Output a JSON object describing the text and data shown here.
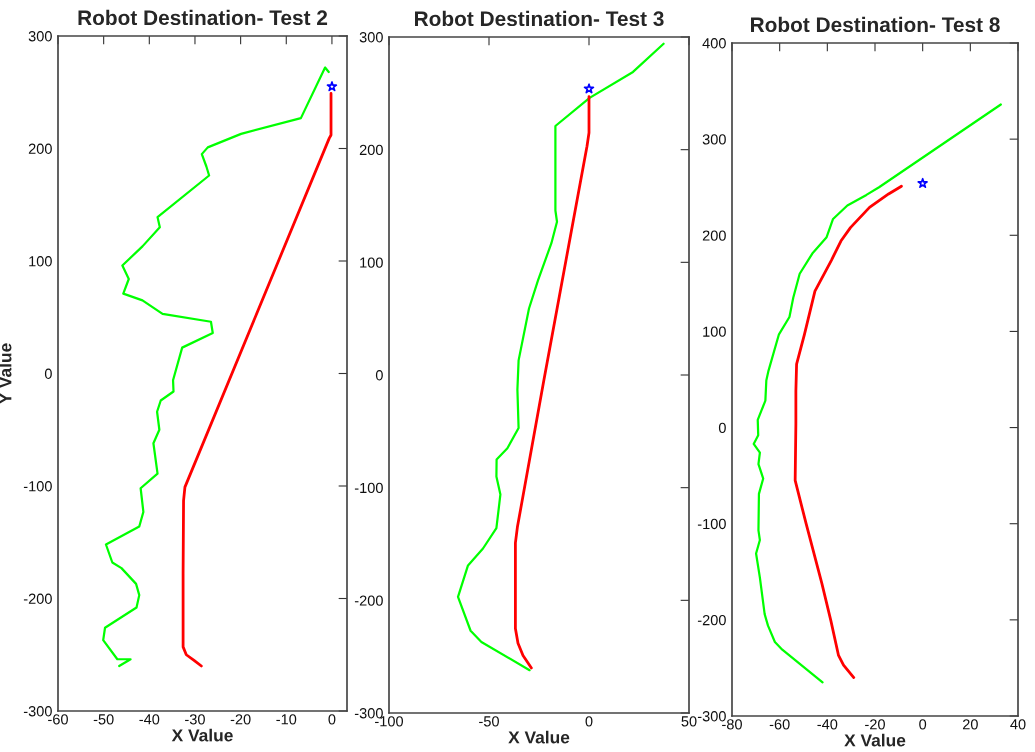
{
  "chart_data": [
    {
      "type": "line",
      "title": "Robot Destination- Test 2",
      "xlabel": "X Value",
      "ylabel": "Y Value",
      "xlim": [
        -60,
        3.3
      ],
      "ylim": [
        -300,
        300
      ],
      "xticks": [
        -60,
        -50,
        -40,
        -30,
        -20,
        -10,
        0
      ],
      "yticks": [
        -300,
        -200,
        -100,
        0,
        100,
        200,
        300
      ],
      "marker": "none",
      "line_style": "solid",
      "series": [
        {
          "color": "#00ff00",
          "x": [
            -0.7,
            -1.5,
            -6.8,
            -19.9,
            -27.2,
            -28.5,
            -27.5,
            -26.9,
            -38.2,
            -37.7,
            -41.5,
            -45.9,
            -44.5,
            -45.7,
            -41.5,
            -37.1,
            -26.5,
            -26.1,
            -32.8,
            -34.8,
            -34.7,
            -37.5,
            -38.3,
            -37.8,
            -39.1,
            -38.2,
            -41.9,
            -41.3,
            -42.2,
            -49.5,
            -48.1,
            -46.1,
            -42.9,
            -42.2,
            -42.8,
            -49.7,
            -50.1,
            -47,
            -44.1,
            -46.6
          ],
          "values": [
            268,
            272,
            227,
            213,
            201,
            195,
            184,
            176,
            139,
            130,
            113,
            96,
            84,
            71,
            65,
            53,
            46,
            36,
            23,
            -6,
            -16,
            -24,
            -34,
            -50,
            -62,
            -89,
            -102,
            -123,
            -136,
            -152,
            -168,
            -173,
            -187,
            -197,
            -208,
            -226,
            -237,
            -254,
            -254,
            -260
          ]
        },
        {
          "color": "#ff0000",
          "x": [
            -0.2,
            -0.2,
            -0.6,
            -32.2,
            -32.5,
            -32.6,
            -32.6,
            -31.9,
            -30.2,
            -28.6
          ],
          "values": [
            249,
            212,
            209,
            -101,
            -113,
            -178,
            -243,
            -250,
            -255,
            -260
          ]
        },
        {
          "type": "scatter",
          "color": "#0000ff",
          "marker": "star",
          "x": [
            0
          ],
          "values": [
            255
          ]
        }
      ]
    },
    {
      "type": "line",
      "title": "Robot Destination- Test 3",
      "xlabel": "X Value",
      "xlim": [
        -100,
        50
      ],
      "ylim": [
        -300,
        300
      ],
      "xticks": [
        -100,
        -50,
        0,
        50
      ],
      "yticks": [
        -300,
        -200,
        -100,
        0,
        100,
        200,
        300
      ],
      "marker": "none",
      "line_style": "solid",
      "series": [
        {
          "color": "#00ff00",
          "x": [
            37.3,
            22,
            0.3,
            -16.8,
            -16.8,
            -16,
            -18.8,
            -25.5,
            -30,
            -35.2,
            -35.8,
            -35.2,
            -40.8,
            -46.2,
            -46.3,
            -44.3,
            -46.3,
            -53,
            -60.5,
            -65.5,
            -59.2,
            -53.8,
            -29.7
          ],
          "values": [
            294,
            269,
            246,
            221,
            146,
            136,
            117,
            84,
            59,
            13,
            -13,
            -47,
            -65,
            -75,
            -90,
            -106,
            -136,
            -154,
            -169,
            -197,
            -227,
            -237,
            -262
          ]
        },
        {
          "color": "#ff0000",
          "x": [
            0,
            0,
            -1,
            -22.5,
            -35.8,
            -36.8,
            -36.8,
            -35.5,
            -33,
            -28.8
          ],
          "values": [
            247,
            215,
            203,
            -4,
            -135,
            -149,
            -225,
            -238,
            -249,
            -260
          ]
        },
        {
          "type": "scatter",
          "color": "#0000ff",
          "marker": "star",
          "x": [
            0
          ],
          "values": [
            254
          ]
        }
      ]
    },
    {
      "type": "line",
      "title": "Robot Destination- Test 8",
      "xlabel": "X Value",
      "xlim": [
        -80,
        40
      ],
      "ylim": [
        -300,
        400
      ],
      "xticks": [
        -80,
        -60,
        -40,
        -20,
        0,
        20,
        40
      ],
      "yticks": [
        -300,
        -200,
        -100,
        0,
        100,
        200,
        300,
        400
      ],
      "marker": "none",
      "line_style": "solid",
      "series": [
        {
          "color": "#00ff00",
          "x": [
            32.8,
            -18.3,
            -23.6,
            -31.6,
            -37.6,
            -40.3,
            -46.3,
            -51.6,
            -54.3,
            -55.9,
            -60.3,
            -64.7,
            -65.6,
            -66,
            -69.2,
            -69,
            -70.9,
            -68.3,
            -68.9,
            -66.9,
            -68.7,
            -68.9,
            -68.3,
            -69.9,
            -68.3,
            -66.3,
            -64.9,
            -62,
            -58.9,
            -42
          ],
          "values": [
            336,
            250,
            242,
            231,
            217,
            198,
            181,
            160,
            135,
            115,
            97,
            59,
            49,
            28,
            8,
            -8,
            -17,
            -26,
            -38,
            -53,
            -69,
            -107,
            -117,
            -131,
            -156,
            -194,
            -206,
            -223,
            -231,
            -265
          ]
        },
        {
          "color": "#ff0000",
          "x": [
            -8.9,
            -14.3,
            -22.3,
            -30.3,
            -34.3,
            -38.3,
            -45.2,
            -49.6,
            -52.9,
            -53.2,
            -53.2,
            -53.5,
            -48.9,
            -42.3,
            -38.5,
            -35.3,
            -33.2,
            -28.9
          ],
          "values": [
            251,
            243,
            229,
            208,
            194,
            174,
            142,
            97,
            66,
            38,
            4,
            -55,
            -100,
            -162,
            -201,
            -237,
            -247,
            -260
          ]
        },
        {
          "type": "scatter",
          "color": "#0000ff",
          "marker": "star",
          "x": [
            0
          ],
          "values": [
            254
          ]
        }
      ]
    }
  ]
}
